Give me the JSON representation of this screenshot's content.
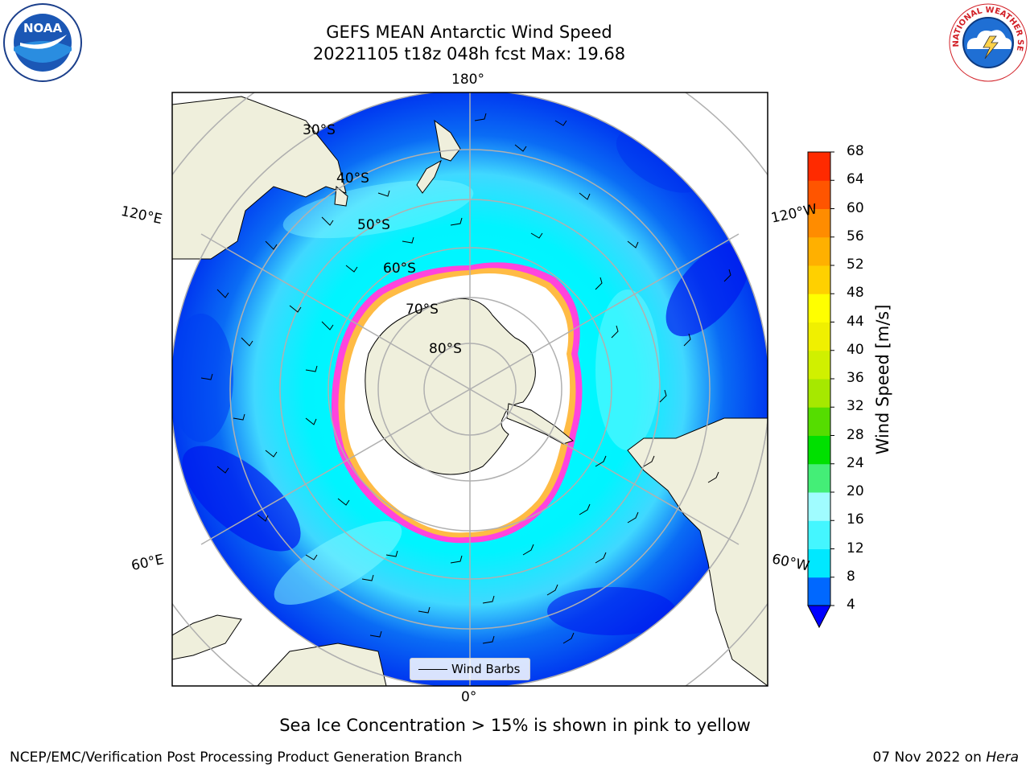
{
  "title": {
    "line1": "GEFS MEAN Antarctic Wind Speed",
    "line2": "20221105 t18z 048h fcst   Max: 19.68"
  },
  "logos": {
    "left": {
      "icon": "noaa-logo",
      "text": "NOAA"
    },
    "right": {
      "icon": "nws-logo",
      "text": "NATIONAL WEATHER SERVICE"
    }
  },
  "map": {
    "projection": "south-polar-stereographic",
    "longitude_labels": {
      "top": "180°",
      "bottom": "0°",
      "upper_left": "120°E",
      "upper_right": "120°W",
      "lower_left": "60°E",
      "lower_right": "60°W"
    },
    "latitude_labels": [
      "30°S",
      "40°S",
      "50°S",
      "60°S",
      "70°S",
      "80°S"
    ],
    "colors": {
      "land": "#efefdc",
      "ocean_low": "#0000ee",
      "ocean_mid": "#0a6cf5",
      "ocean_high": "#00ffff",
      "ice": "#ffffff",
      "sea_ice_edge": "#ff44dd",
      "sea_ice_inner": "#ffbb44",
      "grid": "#b0b0b0"
    },
    "legend": {
      "label": "Wind Barbs"
    }
  },
  "colorbar": {
    "label": "Wind Speed [m/s]",
    "ticks": [
      "4",
      "8",
      "12",
      "16",
      "20",
      "24",
      "28",
      "32",
      "36",
      "40",
      "44",
      "48",
      "52",
      "56",
      "60",
      "64",
      "68"
    ],
    "colors": [
      "#0068ff",
      "#00e8ff",
      "#44f6ff",
      "#a0fcff",
      "#44ee77",
      "#00e000",
      "#55dd00",
      "#a6e800",
      "#d0f000",
      "#f0f000",
      "#ffff00",
      "#ffd000",
      "#ffb000",
      "#ff8c00",
      "#ff5500",
      "#ff2a00"
    ],
    "under_color": "#0000ff"
  },
  "caption": "Sea Ice Concentration > 15% is shown in pink to yellow",
  "footer": {
    "left": "NCEP/EMC/Verification Post Processing Product Generation Branch",
    "right_date": "07 Nov 2022 on ",
    "right_host": "Hera"
  }
}
